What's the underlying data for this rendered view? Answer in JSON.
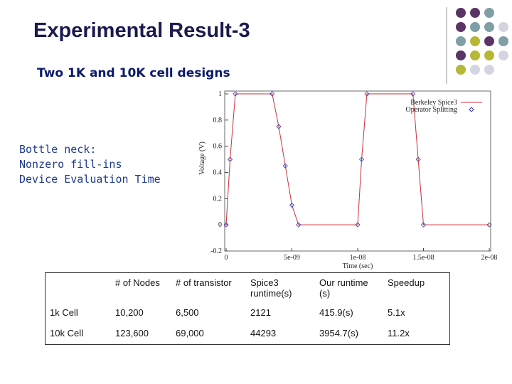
{
  "slide": {
    "title": "Experimental Result-3",
    "subtitle": "Two 1K and 10K cell designs",
    "notes": [
      "Bottle neck:",
      "Nonzero fill-ins",
      "Device Evaluation Time"
    ]
  },
  "chart_data": {
    "type": "line",
    "x_label": "Time (sec)",
    "y_label": "Voltage (V)",
    "x": [
      0,
      3e-10,
      7e-10,
      3.5e-09,
      4e-09,
      4.5e-09,
      5e-09,
      5.5e-09,
      1e-08,
      1.03e-08,
      1.07e-08,
      1.42e-08,
      1.46e-08,
      1.5e-08,
      2e-08
    ],
    "series": [
      {
        "name": "Berkeley Spice3",
        "color": "#c8303a",
        "values": [
          0,
          0.5,
          1,
          1,
          0.75,
          0.45,
          0.15,
          0,
          0,
          0.5,
          1,
          1,
          0.5,
          0,
          0
        ]
      },
      {
        "name": "Operator Splitting",
        "color": "#3a3aa8",
        "values": [
          0,
          0.5,
          1,
          1,
          0.75,
          0.45,
          0.15,
          0,
          0,
          0.5,
          1,
          1,
          0.5,
          0,
          0
        ]
      }
    ],
    "xlim": [
      0,
      2e-08
    ],
    "xticks": [
      0,
      {
        "value": 5e-09,
        "label": "5e-09"
      },
      {
        "value": 1e-08,
        "label": "1e-08"
      },
      {
        "value": 1.5e-08,
        "label": "1.5e-08"
      },
      {
        "value": 2e-08,
        "label": "2e-08"
      }
    ],
    "ylim": [
      -0.2,
      1
    ],
    "yticks": [
      -0.2,
      0,
      0.2,
      0.4,
      0.6,
      0.8,
      1
    ],
    "legend": "upper right"
  },
  "table": {
    "header": [
      "# of Nodes",
      "# of transistor",
      "Spice3 runtime(s)",
      "Our runtime (s)",
      "Speedup"
    ],
    "rows": [
      [
        "1k Cell",
        "10,200",
        "6,500",
        "2121",
        "415.9(s)",
        "5.1x"
      ],
      [
        "10k Cell",
        "123,600",
        "69,000",
        "44293",
        "3954.7(s)",
        "11.2x"
      ]
    ]
  }
}
